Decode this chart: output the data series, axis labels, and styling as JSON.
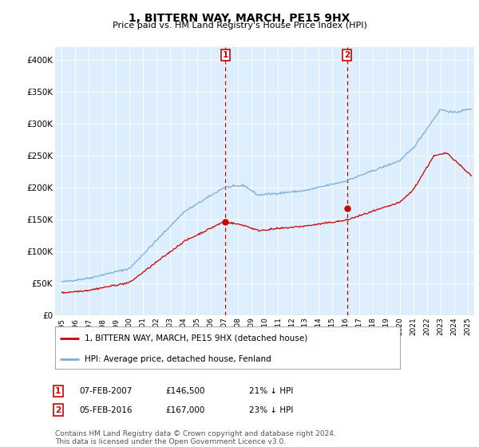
{
  "title": "1, BITTERN WAY, MARCH, PE15 9HX",
  "subtitle": "Price paid vs. HM Land Registry's House Price Index (HPI)",
  "legend_line1": "1, BITTERN WAY, MARCH, PE15 9HX (detached house)",
  "legend_line2": "HPI: Average price, detached house, Fenland",
  "transaction1_date": "07-FEB-2007",
  "transaction1_price": "£146,500",
  "transaction1_hpi": "21% ↓ HPI",
  "transaction1_year": 2007.1,
  "transaction1_value": 146500,
  "transaction2_date": "05-FEB-2016",
  "transaction2_price": "£167,000",
  "transaction2_hpi": "23% ↓ HPI",
  "transaction2_year": 2016.1,
  "transaction2_value": 167000,
  "footer": "Contains HM Land Registry data © Crown copyright and database right 2024.\nThis data is licensed under the Open Government Licence v3.0.",
  "red_color": "#cc0000",
  "blue_color": "#7aaddb",
  "background_color": "#ddeeff",
  "plot_bg": "#ffffff",
  "ylim": [
    0,
    420000
  ],
  "xlim_start": 1994.5,
  "xlim_end": 2025.5
}
